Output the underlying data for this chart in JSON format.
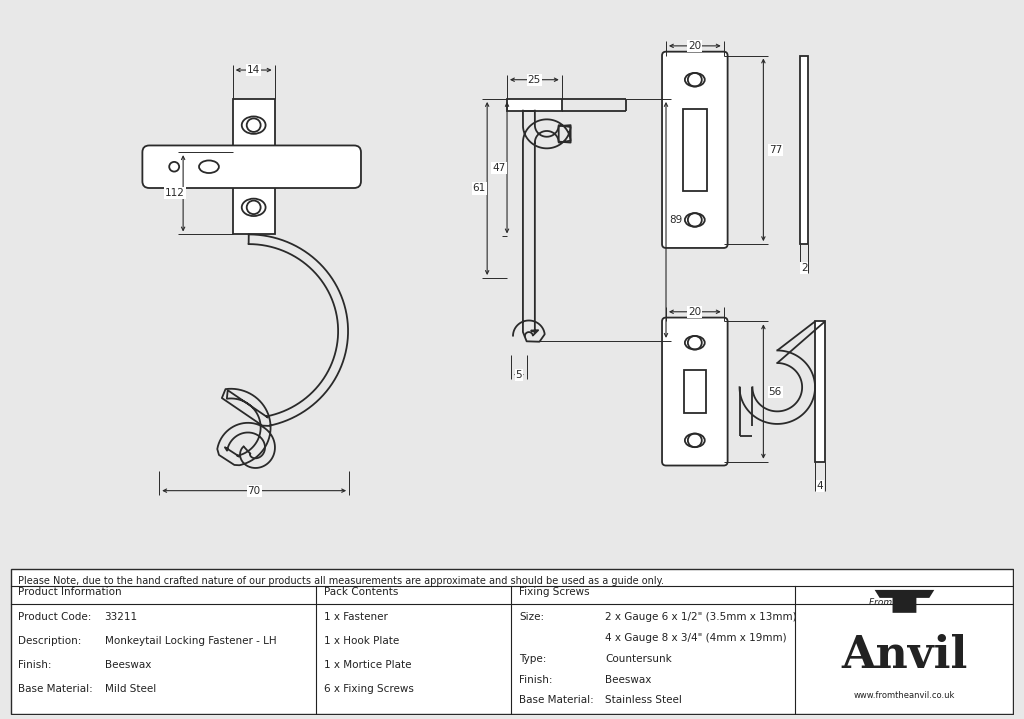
{
  "bg_color": "#e8e8e8",
  "drawing_bg": "#ffffff",
  "line_color": "#2a2a2a",
  "dim_color": "#2a2a2a",
  "note_text": "Please Note, due to the hand crafted nature of our products all measurements are approximate and should be used as a guide only.",
  "product_info": {
    "col1_header": "Product Information",
    "col1_rows": [
      [
        "Product Code:",
        "33211"
      ],
      [
        "Description:",
        "Monkeytail Locking Fastener - LH"
      ],
      [
        "Finish:",
        "Beeswax"
      ],
      [
        "Base Material:",
        "Mild Steel"
      ]
    ],
    "col2_header": "Pack Contents",
    "col2_rows": [
      "1 x Fastener",
      "1 x Hook Plate",
      "1 x Mortice Plate",
      "6 x Fixing Screws"
    ],
    "col3_header": "Fixing Screws",
    "col3_rows": [
      [
        "Size:",
        "2 x Gauge 6 x 1/2\" (3.5mm x 13mm)"
      ],
      [
        "",
        "4 x Gauge 8 x 3/4\" (4mm x 19mm)"
      ],
      [
        "Type:",
        "Countersunk"
      ],
      [
        "Finish:",
        "Beeswax"
      ],
      [
        "Base Material:",
        "Stainless Steel"
      ]
    ]
  }
}
